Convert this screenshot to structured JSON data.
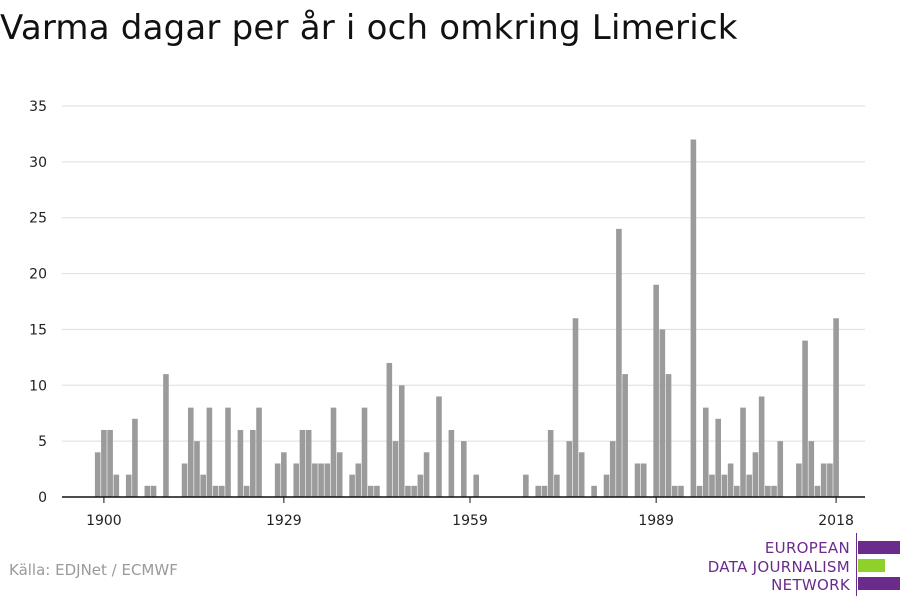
{
  "title": "Varma dagar per år i och omkring Limerick",
  "source": "Källa: EDJNet / ECMWF",
  "logo": {
    "lines": [
      "EUROPEAN",
      "DATA JOURNALISM",
      "NETWORK"
    ],
    "colors": {
      "purple": "#6a2b8c",
      "green": "#8fd12a"
    }
  },
  "chart_data": {
    "type": "bar",
    "title": "Varma dagar per år i och omkring Limerick",
    "xlabel": "",
    "ylabel": "",
    "x": [
      1899,
      1900,
      1901,
      1902,
      1903,
      1904,
      1905,
      1906,
      1907,
      1908,
      1909,
      1910,
      1911,
      1912,
      1913,
      1914,
      1915,
      1916,
      1917,
      1918,
      1919,
      1920,
      1921,
      1922,
      1923,
      1924,
      1925,
      1926,
      1927,
      1928,
      1929,
      1930,
      1931,
      1932,
      1933,
      1934,
      1935,
      1936,
      1937,
      1938,
      1939,
      1940,
      1941,
      1942,
      1943,
      1944,
      1945,
      1946,
      1947,
      1948,
      1949,
      1950,
      1951,
      1952,
      1953,
      1954,
      1955,
      1956,
      1957,
      1958,
      1959,
      1960,
      1961,
      1962,
      1963,
      1964,
      1965,
      1966,
      1967,
      1968,
      1969,
      1970,
      1971,
      1972,
      1973,
      1974,
      1975,
      1976,
      1977,
      1978,
      1979,
      1980,
      1981,
      1982,
      1983,
      1984,
      1985,
      1986,
      1987,
      1988,
      1989,
      1990,
      1991,
      1992,
      1993,
      1994,
      1995,
      1996,
      1997,
      1998,
      1999,
      2000,
      2001,
      2002,
      2003,
      2004,
      2005,
      2006,
      2007,
      2008,
      2009,
      2010,
      2011,
      2012,
      2013,
      2014,
      2015,
      2016,
      2017,
      2018
    ],
    "values": [
      4,
      6,
      6,
      2,
      0,
      2,
      7,
      0,
      1,
      1,
      0,
      11,
      0,
      0,
      3,
      8,
      5,
      2,
      8,
      1,
      1,
      8,
      0,
      6,
      1,
      6,
      8,
      0,
      0,
      3,
      4,
      0,
      3,
      6,
      6,
      3,
      3,
      3,
      8,
      4,
      0,
      2,
      3,
      8,
      1,
      1,
      0,
      12,
      5,
      10,
      1,
      1,
      2,
      4,
      0,
      9,
      0,
      6,
      0,
      5,
      0,
      2,
      0,
      0,
      0,
      0,
      0,
      0,
      0,
      2,
      0,
      1,
      1,
      6,
      2,
      0,
      5,
      16,
      4,
      0,
      1,
      0,
      2,
      5,
      24,
      11,
      0,
      3,
      3,
      0,
      19,
      15,
      11,
      1,
      1,
      0,
      32,
      1,
      8,
      2,
      7,
      2,
      3,
      1,
      8,
      2,
      4,
      9,
      1,
      1,
      5,
      0,
      0,
      3,
      14,
      5,
      1,
      3,
      3,
      16
    ],
    "xticks": [
      1900,
      1929,
      1959,
      1989,
      2018
    ],
    "yticks": [
      0,
      5,
      10,
      15,
      20,
      25,
      30,
      35
    ],
    "ylim": [
      0,
      35
    ],
    "grid": true,
    "bar_color": "#9b9b9b"
  }
}
